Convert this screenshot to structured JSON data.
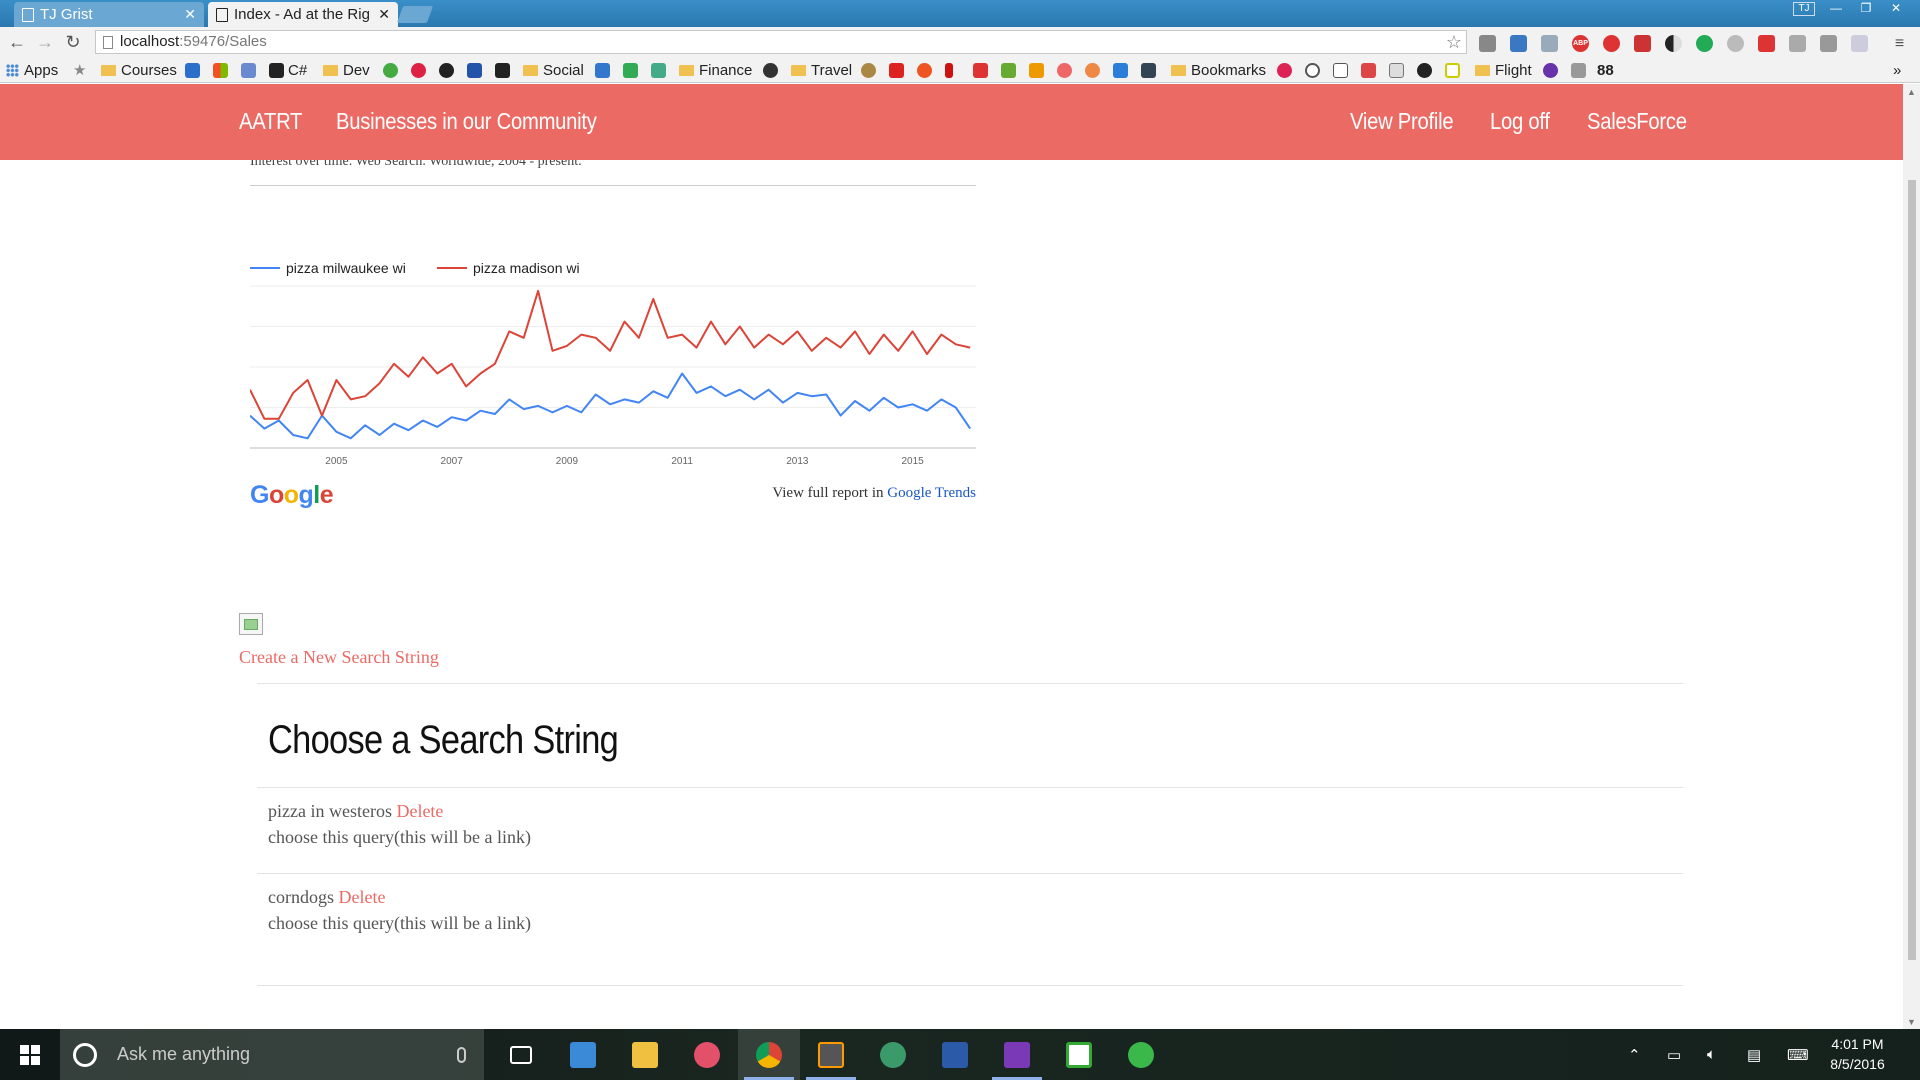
{
  "browser": {
    "tabs": [
      {
        "title": "TJ Grist",
        "active": false
      },
      {
        "title": "Index - Ad at the Rig",
        "active": true
      }
    ],
    "profile_label": "TJ",
    "url_host": "localhost",
    "url_path": ":59476/Sales",
    "bookmarks": [
      {
        "label": "Apps",
        "icon": "apps-grid-icon"
      },
      {
        "label": "Courses",
        "icon": "folder-icon"
      },
      {
        "label": "C#",
        "icon": "m-icon"
      },
      {
        "label": "Dev",
        "icon": "folder-icon"
      },
      {
        "label": "Social",
        "icon": "folder-icon"
      },
      {
        "label": "Finance",
        "icon": "folder-icon"
      },
      {
        "label": "Travel",
        "icon": "folder-icon"
      },
      {
        "label": "Bookmarks",
        "icon": "folder-icon"
      },
      {
        "label": "Flight",
        "icon": "folder-icon"
      },
      {
        "label": "88",
        "icon": "counter-icon"
      }
    ],
    "extension_badge": "ABP"
  },
  "site_nav": {
    "brand": "AATRT",
    "community": "Businesses in our Community",
    "view_profile": "View Profile",
    "log_off": "Log off",
    "salesforce": "SalesForce",
    "color": "#ec6a64"
  },
  "trends": {
    "caption": "Interest over time. Web Search. Worldwide, 2004 - present.",
    "google_logo": "Google",
    "report_prefix": "View full report in ",
    "report_link": "Google Trends"
  },
  "chart_data": {
    "type": "line",
    "x": [
      2004.0,
      2004.25,
      2004.5,
      2004.75,
      2005.0,
      2005.25,
      2005.5,
      2005.75,
      2006.0,
      2006.25,
      2006.5,
      2006.75,
      2007.0,
      2007.25,
      2007.5,
      2007.75,
      2008.0,
      2008.25,
      2008.5,
      2008.75,
      2009.0,
      2009.25,
      2009.5,
      2009.75,
      2010.0,
      2010.25,
      2010.5,
      2010.75,
      2011.0,
      2011.25,
      2011.5,
      2011.75,
      2012.0,
      2012.25,
      2012.5,
      2012.75,
      2013.0,
      2013.25,
      2013.5,
      2013.75,
      2014.0,
      2014.25,
      2014.5,
      2014.75,
      2015.0,
      2015.25,
      2015.5,
      2015.75,
      2016.0,
      2016.25,
      2016.5
    ],
    "series": [
      {
        "name": "pizza milwaukee wi",
        "color": "#4285f4",
        "values": [
          20,
          12,
          17,
          8,
          6,
          20,
          10,
          6,
          14,
          8,
          15,
          11,
          17,
          13,
          19,
          17,
          23,
          21,
          30,
          24,
          26,
          22,
          26,
          22,
          33,
          27,
          30,
          28,
          35,
          31,
          46,
          34,
          38,
          32,
          36,
          30,
          36,
          28,
          34,
          32,
          33,
          20,
          29,
          23,
          31,
          25,
          27,
          23,
          30,
          25,
          12
        ]
      },
      {
        "name": "pizza madison wi",
        "color": "#db4437",
        "values": [
          36,
          18,
          18,
          34,
          42,
          20,
          42,
          30,
          32,
          40,
          52,
          44,
          56,
          46,
          52,
          38,
          46,
          52,
          72,
          68,
          97,
          60,
          63,
          70,
          68,
          60,
          78,
          68,
          92,
          68,
          70,
          62,
          78,
          64,
          75,
          62,
          70,
          64,
          72,
          60,
          68,
          62,
          72,
          58,
          70,
          60,
          72,
          58,
          70,
          64,
          62
        ]
      }
    ],
    "x_tick_labels": [
      "2005",
      "2007",
      "2009",
      "2011",
      "2013",
      "2015"
    ],
    "ylim": [
      0,
      100
    ],
    "grid": true,
    "legend": "top-left"
  },
  "main": {
    "create_link": "Create a New Search String",
    "section_title": "Choose a Search String",
    "queries": [
      {
        "name": "pizza in westeros",
        "delete": "Delete",
        "choose": "choose this query(this will be a link)"
      },
      {
        "name": "corndogs",
        "delete": "Delete",
        "choose": "choose this query(this will be a link)"
      }
    ]
  },
  "taskbar": {
    "search_placeholder": "Ask me anything",
    "time": "4:01 PM",
    "date": "8/5/2016",
    "apps": [
      "task-view-icon",
      "network-app-icon",
      "file-explorer-icon",
      "itunes-icon",
      "chrome-icon",
      "sublime-icon",
      "atom-icon",
      "powershell-icon",
      "visual-studio-icon",
      "slack-icon",
      "messages-icon"
    ]
  }
}
